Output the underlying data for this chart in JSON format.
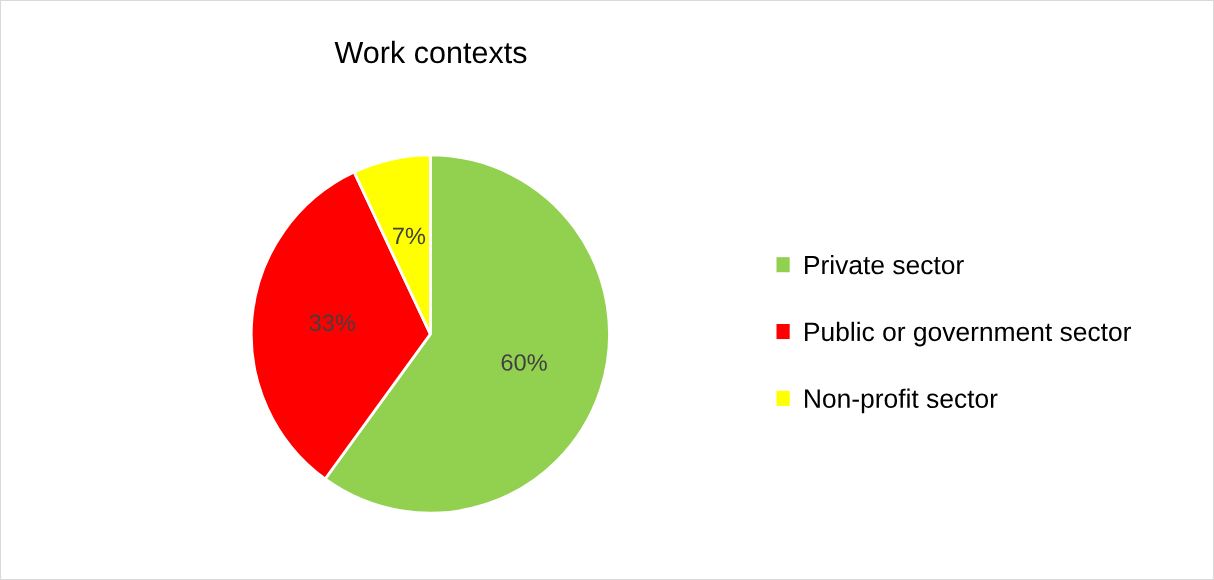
{
  "chart_data": {
    "type": "pie",
    "title": "Work contexts",
    "categories": [
      "Private sector",
      "Public or government sector",
      "Non-profit sector"
    ],
    "values": [
      60,
      33,
      7
    ],
    "colors": [
      "#92d050",
      "#ff0000",
      "#ffff00"
    ],
    "value_labels": [
      "60%",
      "33%",
      "7%"
    ],
    "legend": "right"
  }
}
